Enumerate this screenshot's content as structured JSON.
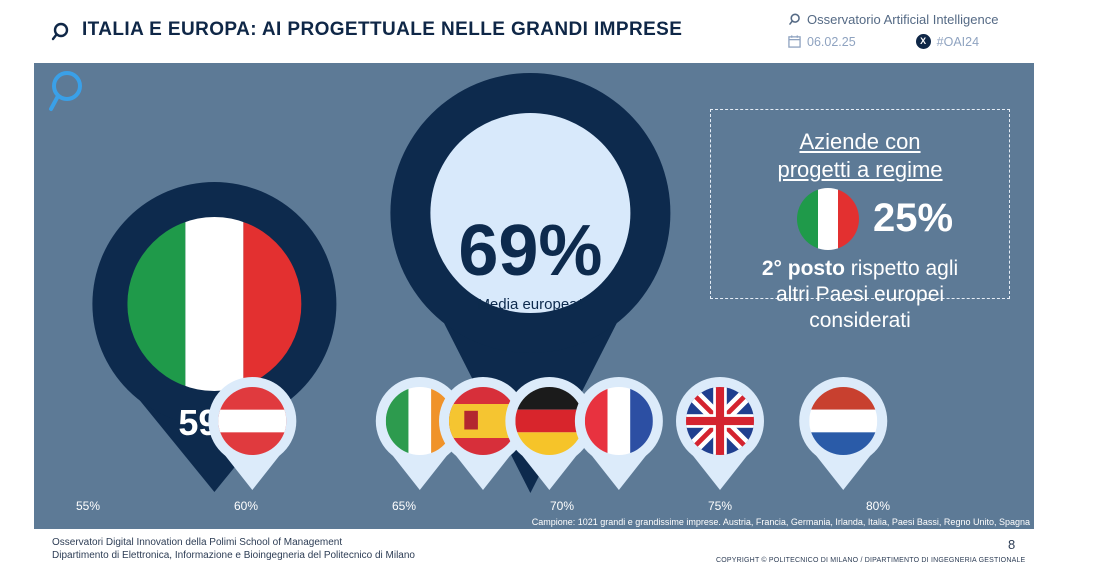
{
  "header": {
    "title": "ITALIA E EUROPA: AI PROGETTUALE NELLE GRANDI IMPRESE",
    "brand": "Osservatorio Artificial Intelligence",
    "date": "06.02.25",
    "hashtag": "#OAI24"
  },
  "callout": {
    "title_line1": "Aziende con",
    "title_line2": "progetti a regime",
    "value": "25%",
    "rank_bold": "2° posto",
    "rank_rest": " rispetto agli",
    "line2": "altri Paesi europei",
    "line3": "considerati"
  },
  "chart_data": {
    "type": "scatter",
    "x_axis": {
      "range": [
        55,
        80
      ],
      "ticks": [
        "55%",
        "60%",
        "65%",
        "70%",
        "75%",
        "80%"
      ]
    },
    "highlight": {
      "country": "Italia",
      "value": 59,
      "label": "59%"
    },
    "average": {
      "value": 69,
      "label": "69%",
      "caption": "Media europea*"
    },
    "countries": [
      {
        "country": "Austria",
        "value": 60.2,
        "flag": "austria"
      },
      {
        "country": "Irlanda",
        "value": 65.5,
        "flag": "ireland"
      },
      {
        "country": "Spagna",
        "value": 67.5,
        "flag": "spain"
      },
      {
        "country": "Germania",
        "value": 69.6,
        "flag": "germany"
      },
      {
        "country": "Francia",
        "value": 71.8,
        "flag": "france"
      },
      {
        "country": "Regno Unito",
        "value": 75.0,
        "flag": "uk"
      },
      {
        "country": "Paesi Bassi",
        "value": 78.9,
        "flag": "netherlands"
      }
    ],
    "sample_note": "Campione: 1021 grandi e grandissime imprese. Austria, Francia, Germania, Irlanda, Italia, Paesi Bassi, Regno Unito, Spagna"
  },
  "colors": {
    "panel_bg": "#5d7a96",
    "pin_dark": "#0d2a4d",
    "pin_light": "#dcebfa",
    "avg_circle": "#d8e9fb",
    "it_green": "#1f9a4a",
    "it_red": "#e33030"
  },
  "footer": {
    "line1": "Osservatori Digital Innovation della Polimi School of Management",
    "line2": "Dipartimento di Elettronica, Informazione e Bioingegneria del Politecnico di Milano",
    "page": "8",
    "copyright": "COPYRIGHT © POLITECNICO DI MILANO / DIPARTIMENTO DI INGEGNERIA GESTIONALE"
  }
}
